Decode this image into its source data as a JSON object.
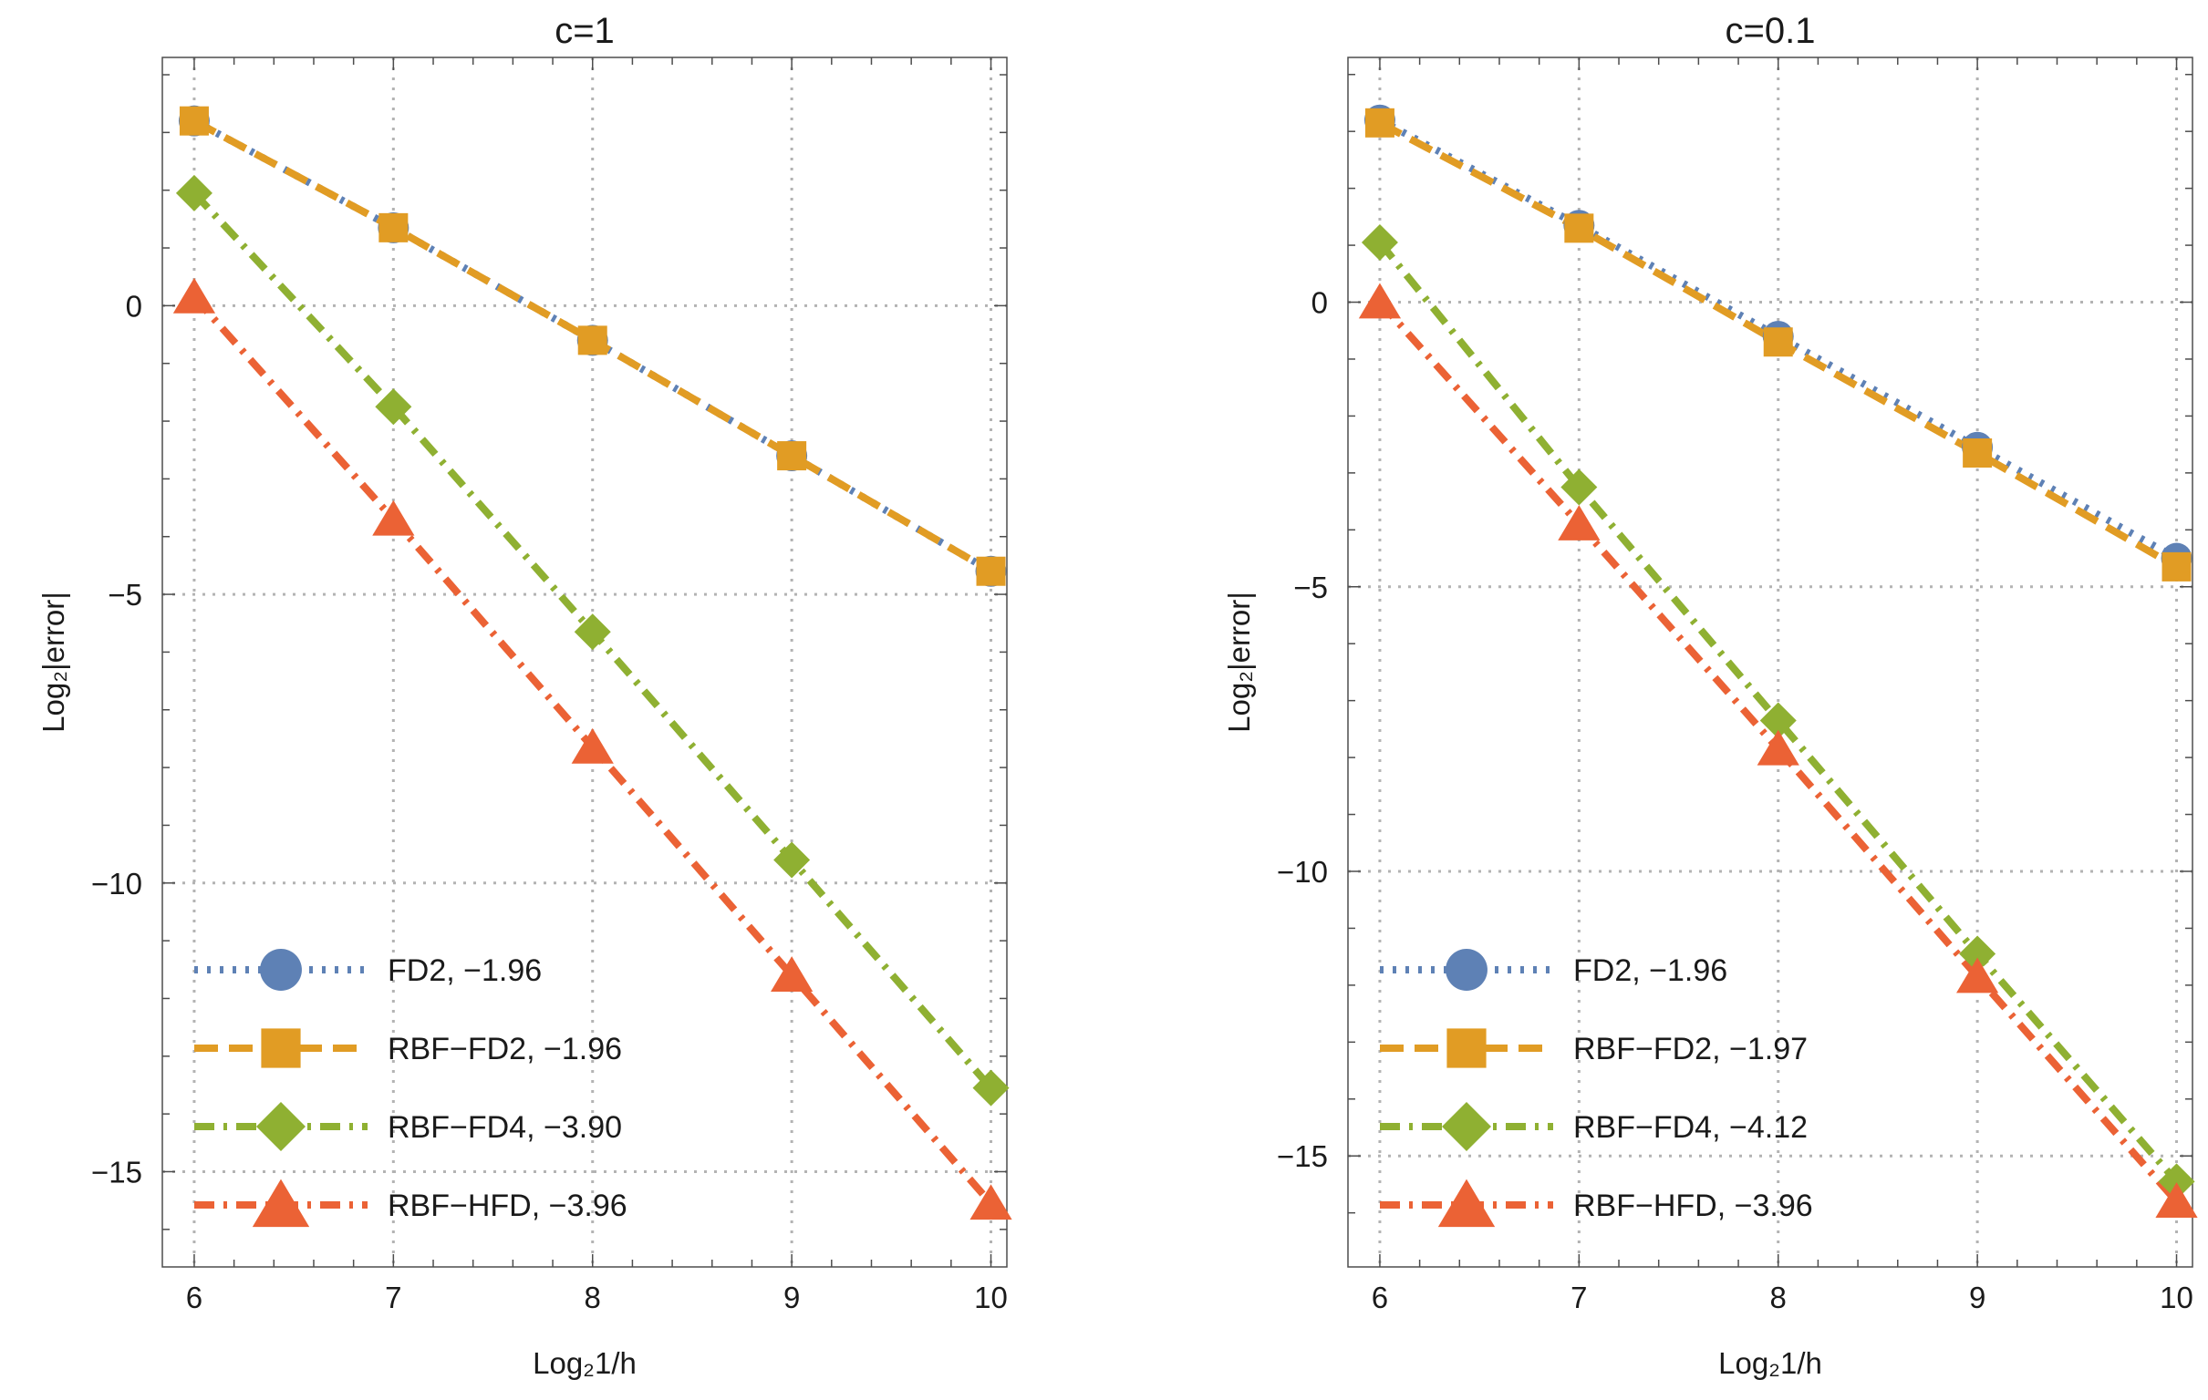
{
  "chart_data": [
    {
      "type": "line",
      "title": "c=1",
      "xlabel": "Log₂1/h",
      "ylabel": "Log₂|error|",
      "x": [
        6,
        7,
        8,
        9,
        10
      ],
      "xticks": [
        "6",
        "7",
        "8",
        "9",
        "10"
      ],
      "yticks": [
        {
          "value": 0,
          "label": "0"
        },
        {
          "value": -5,
          "label": "−5"
        },
        {
          "value": -10,
          "label": "−10"
        },
        {
          "value": -15,
          "label": "−15"
        }
      ],
      "xlim": [
        5.84,
        10.08
      ],
      "ylim": [
        -16.65,
        4.3
      ],
      "grid": true,
      "legend_position": "bottom-left",
      "series": [
        {
          "name": "FD2",
          "slope": "−1.96",
          "legend": "FD2, −1.96",
          "values": [
            3.2,
            1.35,
            -0.6,
            -2.6,
            -4.6
          ],
          "color": "#5e81b5",
          "marker": "circle",
          "dash": "dotted"
        },
        {
          "name": "RBF-FD2",
          "slope": "−1.96",
          "legend": "RBF−FD2, −1.96",
          "values": [
            3.2,
            1.35,
            -0.6,
            -2.6,
            -4.6
          ],
          "color": "#e19c24",
          "marker": "square",
          "dash": "dashed"
        },
        {
          "name": "RBF-FD4",
          "slope": "−3.90",
          "legend": "RBF−FD4, −3.90",
          "values": [
            1.95,
            -1.75,
            -5.65,
            -9.6,
            -13.55
          ],
          "color": "#8fb032",
          "marker": "diamond",
          "dash": "dotdash"
        },
        {
          "name": "RBF-HFD",
          "slope": "−3.96",
          "legend": "RBF−HFD, −3.96",
          "values": [
            0.15,
            -3.7,
            -7.65,
            -11.6,
            -15.55
          ],
          "color": "#eb6235",
          "marker": "triangle",
          "dash": "dotdash"
        }
      ]
    },
    {
      "type": "line",
      "title": "c=0.1",
      "xlabel": "Log₂1/h",
      "ylabel": "Log₂|error|",
      "x": [
        6,
        7,
        8,
        9,
        10
      ],
      "xticks": [
        "6",
        "7",
        "8",
        "9",
        "10"
      ],
      "yticks": [
        {
          "value": 0,
          "label": "0"
        },
        {
          "value": -5,
          "label": "−5"
        },
        {
          "value": -10,
          "label": "−10"
        },
        {
          "value": -15,
          "label": "−15"
        }
      ],
      "xlim": [
        5.84,
        10.08
      ],
      "ylim": [
        -16.95,
        4.3
      ],
      "grid": true,
      "legend_position": "bottom-left",
      "series": [
        {
          "name": "FD2",
          "slope": "−1.96",
          "legend": "FD2, −1.96",
          "values": [
            3.2,
            1.35,
            -0.6,
            -2.55,
            -4.5
          ],
          "color": "#5e81b5",
          "marker": "circle",
          "dash": "dotted"
        },
        {
          "name": "RBF-FD2",
          "slope": "−1.97",
          "legend": "RBF−FD2, −1.97",
          "values": [
            3.15,
            1.3,
            -0.7,
            -2.65,
            -4.65
          ],
          "color": "#e19c24",
          "marker": "square",
          "dash": "dashed"
        },
        {
          "name": "RBF-FD4",
          "slope": "−4.12",
          "legend": "RBF−FD4, −4.12",
          "values": [
            1.05,
            -3.25,
            -7.35,
            -11.45,
            -15.45
          ],
          "color": "#8fb032",
          "marker": "diamond",
          "dash": "dotdash"
        },
        {
          "name": "RBF-HFD",
          "slope": "−3.96",
          "legend": "RBF−HFD, −3.96",
          "values": [
            0,
            -3.9,
            -7.85,
            -11.85,
            -15.8
          ],
          "color": "#eb6235",
          "marker": "triangle",
          "dash": "dotdash"
        }
      ]
    }
  ]
}
